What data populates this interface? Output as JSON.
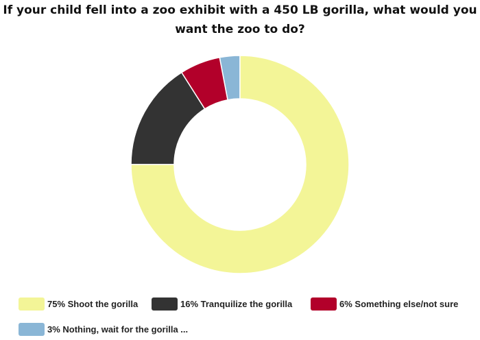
{
  "chart_data": {
    "type": "pie",
    "donut": true,
    "title_lines": [
      "If your child fell into a zoo exhibit with a 450 LB gorilla, what would you",
      "want the zoo to do?"
    ],
    "slices": [
      {
        "label": "Shoot the gorilla",
        "value": 75,
        "legend": "75% Shoot the gorilla",
        "color": "#f3f597"
      },
      {
        "label": "Tranquilize the gorilla",
        "value": 16,
        "legend": "16% Tranquilize the gorilla",
        "color": "#333333"
      },
      {
        "label": "Something else/not sure",
        "value": 6,
        "legend": "6% Something else/not sure",
        "color": "#b2002a"
      },
      {
        "label": "Nothing, wait for the gorilla ...",
        "value": 3,
        "legend": "3% Nothing, wait for the gorilla ...",
        "color": "#8ab6d6"
      }
    ],
    "legend_position": "bottom"
  }
}
